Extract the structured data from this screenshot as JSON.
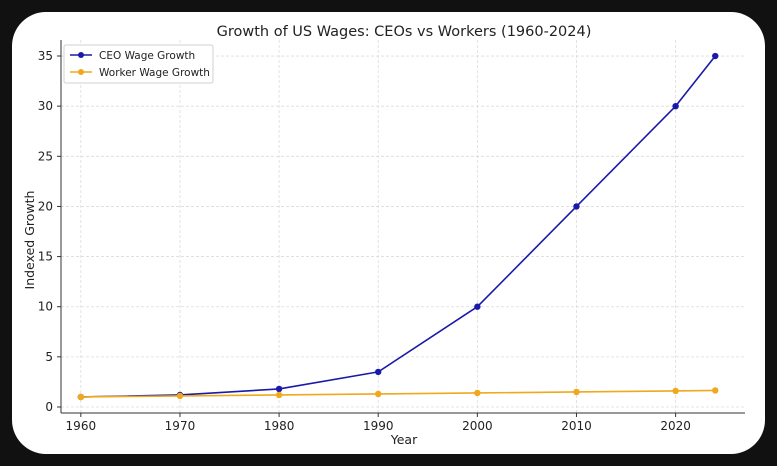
{
  "chart_data": {
    "type": "line",
    "title": "Growth of US Wages: CEOs vs Workers (1960-2024)",
    "xlabel": "Year",
    "ylabel": "Indexed Growth",
    "x_ticks": [
      1960,
      1970,
      1980,
      1990,
      2000,
      2010,
      2020
    ],
    "y_ticks": [
      0,
      5,
      10,
      15,
      20,
      25,
      30,
      35
    ],
    "xlim": [
      1958,
      2027
    ],
    "ylim": [
      -0.6,
      36.6
    ],
    "grid": true,
    "legend_position": "top-left",
    "x": [
      1960,
      1970,
      1980,
      1990,
      2000,
      2010,
      2020,
      2024
    ],
    "series": [
      {
        "name": "CEO Wage Growth",
        "color": "#1a1aa8",
        "values": [
          1.0,
          1.2,
          1.8,
          3.5,
          10.0,
          20.0,
          30.0,
          35.0
        ]
      },
      {
        "name": "Worker Wage Growth",
        "color": "#f0a81c",
        "values": [
          1.0,
          1.1,
          1.2,
          1.3,
          1.4,
          1.5,
          1.6,
          1.65
        ]
      }
    ]
  }
}
